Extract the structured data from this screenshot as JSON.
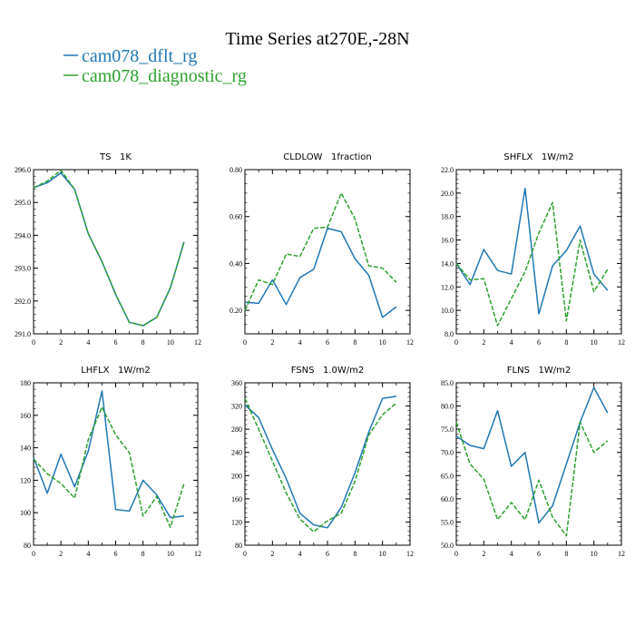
{
  "figure": {
    "title": "Time Series at270E,-28N",
    "legend": [
      {
        "label": "cam078_dflt_rg",
        "color": "#1f77b4",
        "dash": "solid"
      },
      {
        "label": "cam078_diagnostic_rg",
        "color": "#2ca02c",
        "dash": "dashed"
      }
    ]
  },
  "chart_data": [
    {
      "type": "line",
      "title": "TS   1K",
      "x": [
        0,
        1,
        2,
        3,
        4,
        5,
        6,
        7,
        8,
        9,
        10,
        11
      ],
      "xlim": [
        0,
        12
      ],
      "xticks": [
        "0",
        "2",
        "4",
        "6",
        "8",
        "10",
        "12"
      ],
      "ylim": [
        291.0,
        296.0
      ],
      "yticks": [
        "291.0",
        "292.0",
        "293.0",
        "294.0",
        "295.0",
        "296.0"
      ],
      "series": [
        {
          "name": "cam078_dflt_rg",
          "values": [
            295.45,
            295.6,
            295.9,
            295.4,
            294.05,
            293.2,
            292.2,
            291.35,
            291.25,
            291.5,
            292.4,
            293.8
          ]
        },
        {
          "name": "cam078_diagnostic_rg",
          "values": [
            295.45,
            295.65,
            295.98,
            295.4,
            294.05,
            293.2,
            292.2,
            291.35,
            291.25,
            291.5,
            292.4,
            293.8
          ]
        }
      ]
    },
    {
      "type": "line",
      "title": "CLDLOW   1fraction",
      "x": [
        0,
        1,
        2,
        3,
        4,
        5,
        6,
        7,
        8,
        9,
        10,
        11
      ],
      "xlim": [
        0,
        12
      ],
      "xticks": [
        "0",
        "2",
        "4",
        "6",
        "8",
        "10",
        "12"
      ],
      "ylim": [
        0.1,
        0.8
      ],
      "yticks": [
        "0.20",
        "0.40",
        "0.60",
        "0.80"
      ],
      "series": [
        {
          "name": "cam078_dflt_rg",
          "values": [
            0.235,
            0.23,
            0.33,
            0.225,
            0.34,
            0.375,
            0.55,
            0.535,
            0.42,
            0.35,
            0.17,
            0.215
          ]
        },
        {
          "name": "cam078_diagnostic_rg",
          "values": [
            0.2,
            0.33,
            0.31,
            0.44,
            0.43,
            0.55,
            0.555,
            0.7,
            0.59,
            0.39,
            0.38,
            0.32
          ]
        }
      ]
    },
    {
      "type": "line",
      "title": "SHFLX   1W/m2",
      "x": [
        0,
        1,
        2,
        3,
        4,
        5,
        6,
        7,
        8,
        9,
        10,
        11
      ],
      "xlim": [
        0,
        12
      ],
      "xticks": [
        "0",
        "2",
        "4",
        "6",
        "8",
        "10",
        "12"
      ],
      "ylim": [
        8.0,
        22.0
      ],
      "yticks": [
        "8.0",
        "10.0",
        "12.0",
        "14.0",
        "16.0",
        "18.0",
        "20.0",
        "22.0"
      ],
      "series": [
        {
          "name": "cam078_dflt_rg",
          "values": [
            14.0,
            12.2,
            15.2,
            13.4,
            13.1,
            20.4,
            9.7,
            13.8,
            15.1,
            17.2,
            13.1,
            11.7
          ]
        },
        {
          "name": "cam078_diagnostic_rg",
          "values": [
            14.0,
            12.6,
            12.7,
            8.7,
            11.0,
            13.3,
            16.6,
            19.2,
            9.1,
            16.0,
            11.6,
            13.5
          ]
        }
      ]
    },
    {
      "type": "line",
      "title": "LHFLX   1W/m2",
      "x": [
        0,
        1,
        2,
        3,
        4,
        5,
        6,
        7,
        8,
        9,
        10,
        11
      ],
      "xlim": [
        0,
        12
      ],
      "xticks": [
        "0",
        "2",
        "4",
        "6",
        "8",
        "10",
        "12"
      ],
      "ylim": [
        80,
        180
      ],
      "yticks": [
        "80",
        "100",
        "120",
        "140",
        "160",
        "180"
      ],
      "series": [
        {
          "name": "cam078_dflt_rg",
          "values": [
            134,
            112,
            136,
            116,
            138,
            175,
            102,
            101,
            120,
            111,
            97,
            98
          ]
        },
        {
          "name": "cam078_diagnostic_rg",
          "values": [
            133,
            124,
            118,
            109,
            145,
            165,
            148,
            137,
            98,
            110,
            91,
            118
          ]
        }
      ]
    },
    {
      "type": "line",
      "title": "FSNS   1.0W/m2",
      "x": [
        0,
        1,
        2,
        3,
        4,
        5,
        6,
        7,
        8,
        9,
        10,
        11
      ],
      "xlim": [
        0,
        12
      ],
      "xticks": [
        "0",
        "2",
        "4",
        "6",
        "8",
        "10",
        "12"
      ],
      "ylim": [
        80,
        360
      ],
      "yticks": [
        "80",
        "120",
        "160",
        "200",
        "240",
        "280",
        "320",
        "360"
      ],
      "series": [
        {
          "name": "cam078_dflt_rg",
          "values": [
            322,
            300,
            245,
            195,
            135,
            115,
            110,
            145,
            205,
            275,
            333,
            337
          ]
        },
        {
          "name": "cam078_diagnostic_rg",
          "values": [
            333,
            280,
            225,
            170,
            125,
            103,
            122,
            135,
            190,
            270,
            305,
            325
          ]
        }
      ]
    },
    {
      "type": "line",
      "title": "FLNS   1W/m2",
      "x": [
        0,
        1,
        2,
        3,
        4,
        5,
        6,
        7,
        8,
        9,
        10,
        11
      ],
      "xlim": [
        0,
        12
      ],
      "xticks": [
        "0",
        "2",
        "4",
        "6",
        "8",
        "10",
        "12"
      ],
      "ylim": [
        50.0,
        85.0
      ],
      "yticks": [
        "50.0",
        "55.0",
        "60.0",
        "65.0",
        "70.0",
        "75.0",
        "80.0",
        "85.0"
      ],
      "series": [
        {
          "name": "cam078_dflt_rg",
          "values": [
            73.5,
            71.5,
            70.8,
            79.0,
            67.0,
            70.0,
            54.8,
            58.5,
            67.5,
            76.5,
            84.0,
            78.5
          ]
        },
        {
          "name": "cam078_diagnostic_rg",
          "values": [
            76.5,
            67.5,
            64.2,
            55.5,
            59.2,
            55.5,
            64.0,
            56.0,
            52.0,
            76.5,
            70.0,
            72.5
          ]
        }
      ]
    }
  ]
}
